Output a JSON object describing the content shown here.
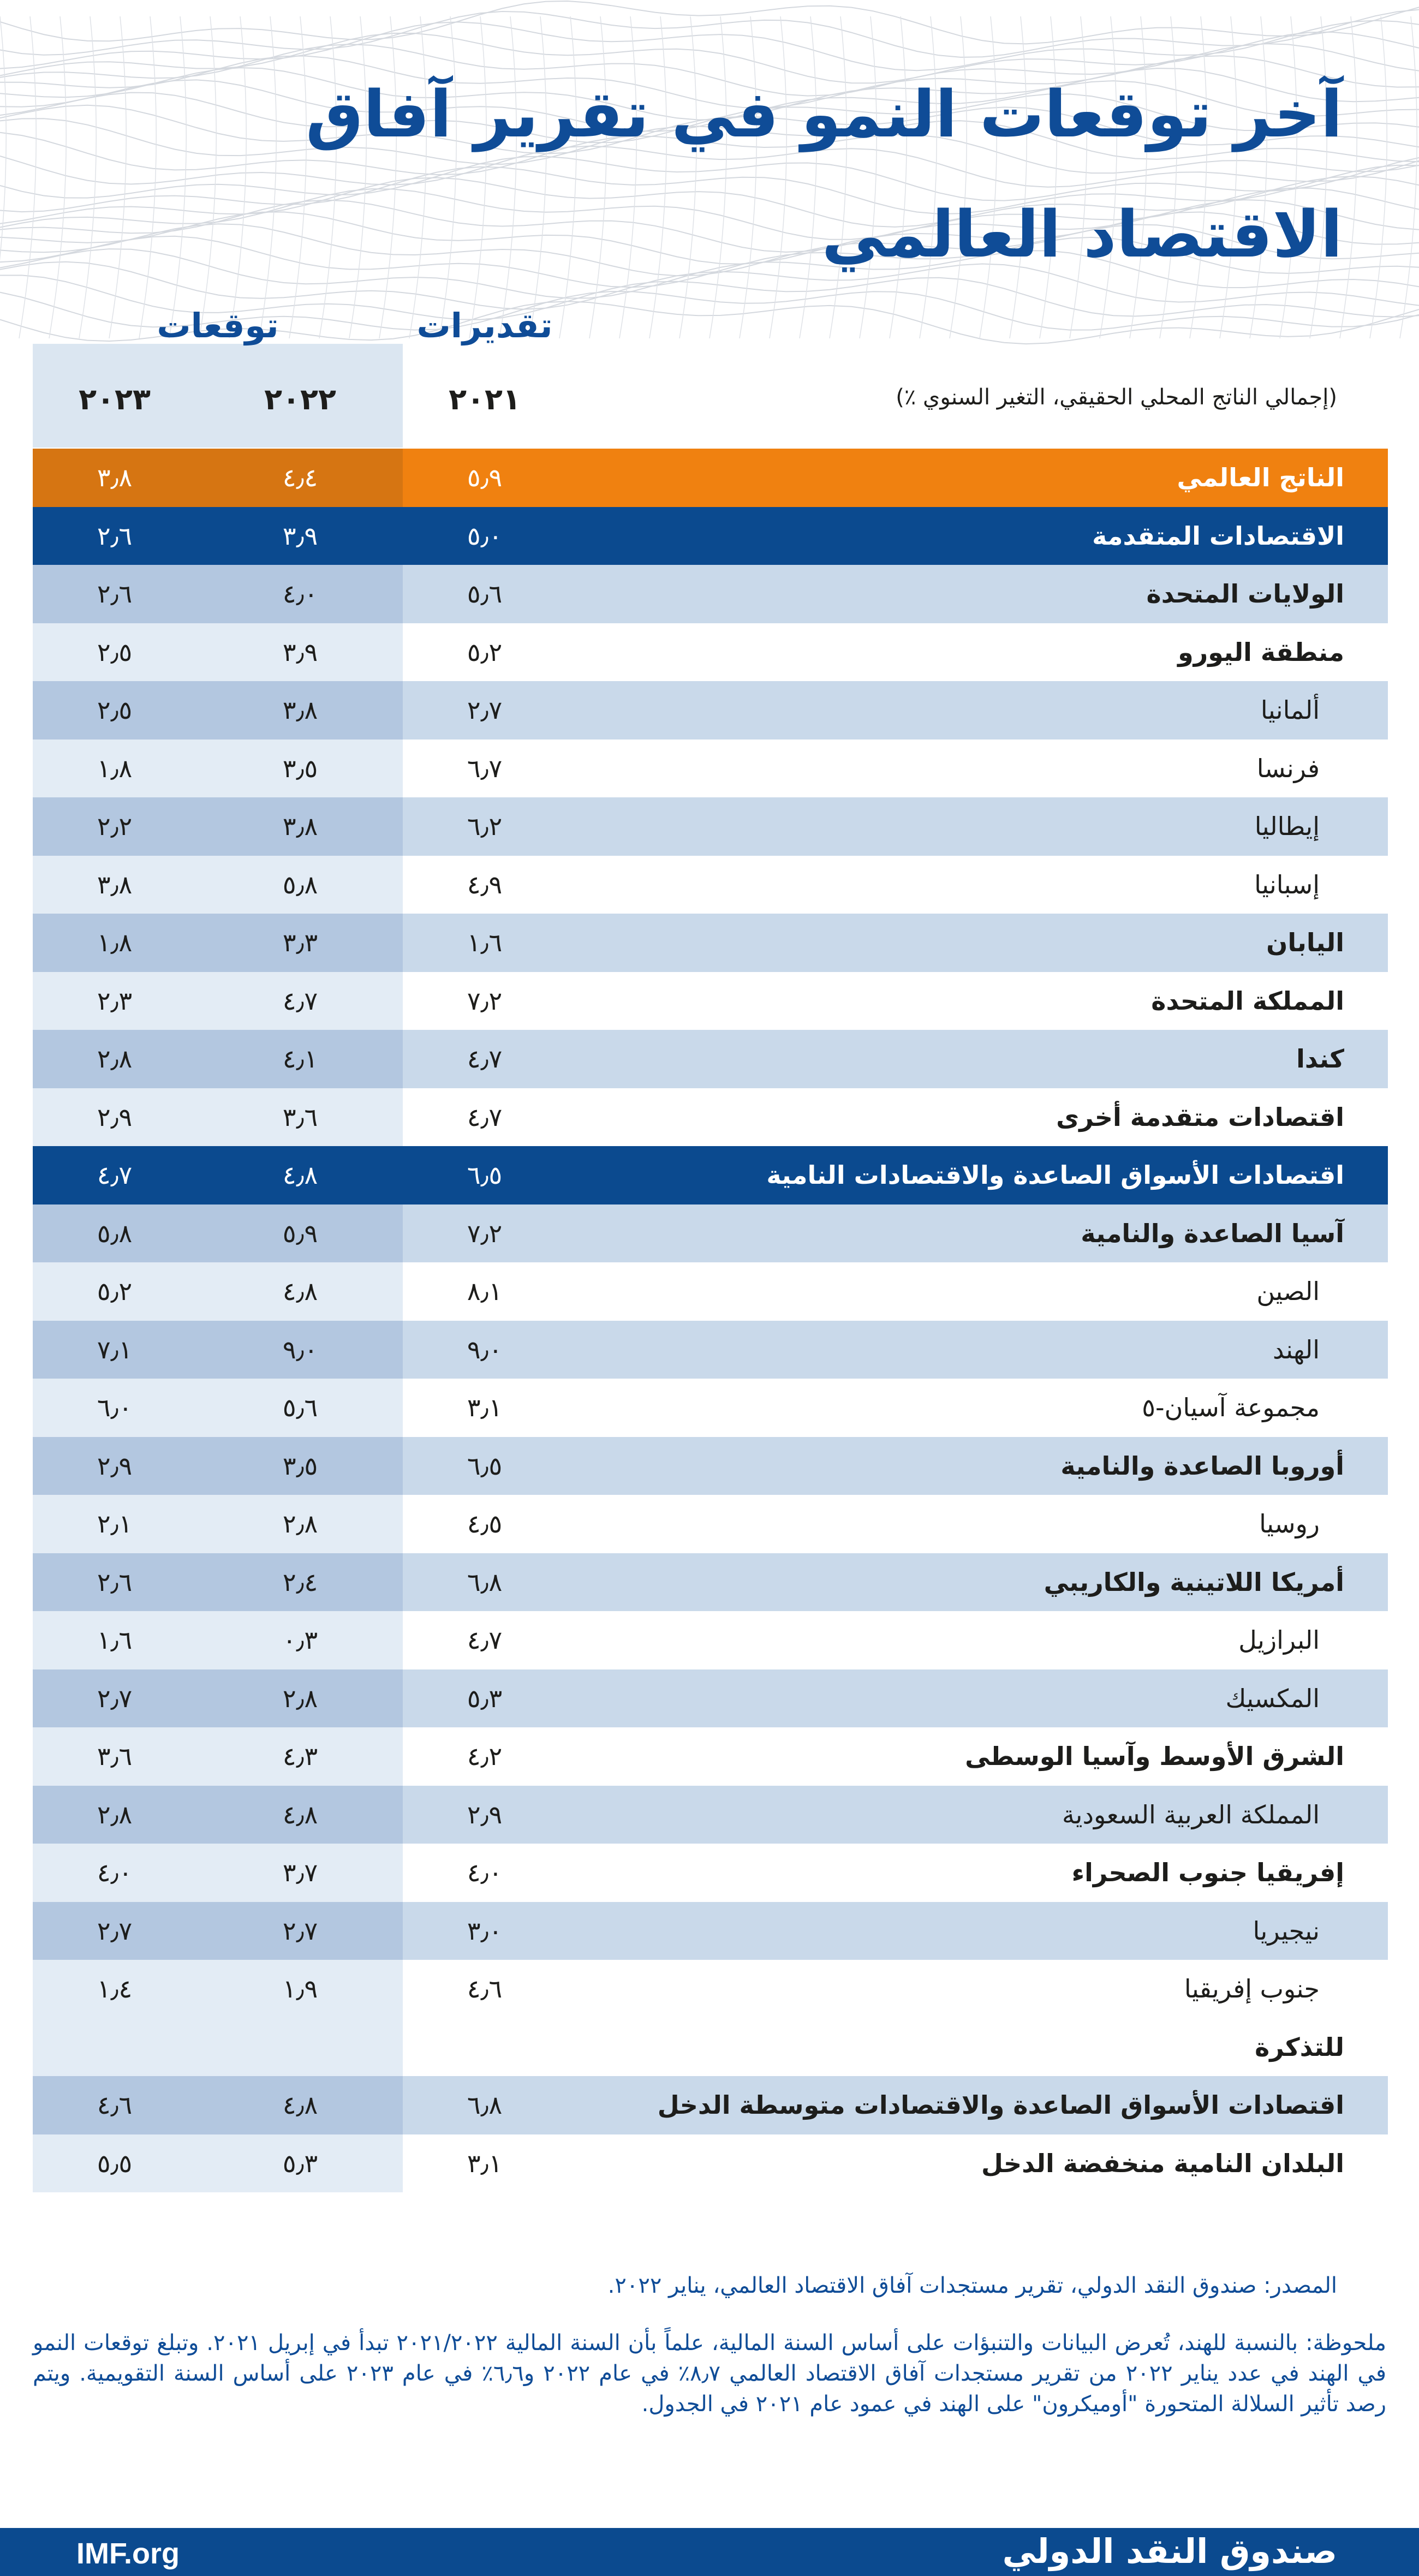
{
  "title": {
    "line1": "آخر توقعات النمو في تقرير آفاق",
    "line2": "الاقتصاد العالمي"
  },
  "header": {
    "estimates_label": "تقديرات",
    "projections_label": "توقعات",
    "years": [
      "٢٠٢١",
      "٢٠٢٢",
      "٢٠٢٣"
    ],
    "subtitle": "(إجمالي الناتج المحلي الحقيقي، التغير السنوي ٪)"
  },
  "colors": {
    "title": "#0f4c97",
    "world_row": "#f08110",
    "group_row": "#0b4a8f",
    "shaded_row": "#c9d9ea",
    "forecast_column": "#b3c7e0"
  },
  "rows": [
    {
      "label": "الناتج العالمي",
      "kind": "world",
      "v2021": "٥٫٩",
      "v2022": "٤٫٤",
      "v2023": "٣٫٨"
    },
    {
      "label": "الاقتصادات المتقدمة",
      "kind": "group",
      "v2021": "٥٫٠",
      "v2022": "٣٫٩",
      "v2023": "٢٫٦"
    },
    {
      "label": "الولايات المتحدة",
      "kind": "bold",
      "shaded": true,
      "v2021": "٥٫٦",
      "v2022": "٤٫٠",
      "v2023": "٢٫٦"
    },
    {
      "label": "منطقة اليورو",
      "kind": "bold",
      "shaded": false,
      "v2021": "٥٫٢",
      "v2022": "٣٫٩",
      "v2023": "٢٫٥"
    },
    {
      "label": "ألمانيا",
      "kind": "country",
      "shaded": true,
      "v2021": "٢٫٧",
      "v2022": "٣٫٨",
      "v2023": "٢٫٥"
    },
    {
      "label": "فرنسا",
      "kind": "country",
      "shaded": false,
      "v2021": "٦٫٧",
      "v2022": "٣٫٥",
      "v2023": "١٫٨"
    },
    {
      "label": "إيطاليا",
      "kind": "country",
      "shaded": true,
      "v2021": "٦٫٢",
      "v2022": "٣٫٨",
      "v2023": "٢٫٢"
    },
    {
      "label": "إسبانيا",
      "kind": "country",
      "shaded": false,
      "v2021": "٤٫٩",
      "v2022": "٥٫٨",
      "v2023": "٣٫٨"
    },
    {
      "label": "اليابان",
      "kind": "bold",
      "shaded": true,
      "v2021": "١٫٦",
      "v2022": "٣٫٣",
      "v2023": "١٫٨"
    },
    {
      "label": "المملكة المتحدة",
      "kind": "bold",
      "shaded": false,
      "v2021": "٧٫٢",
      "v2022": "٤٫٧",
      "v2023": "٢٫٣"
    },
    {
      "label": "كندا",
      "kind": "bold",
      "shaded": true,
      "v2021": "٤٫٧",
      "v2022": "٤٫١",
      "v2023": "٢٫٨"
    },
    {
      "label": "اقتصادات متقدمة أخرى",
      "kind": "bold",
      "shaded": false,
      "v2021": "٤٫٧",
      "v2022": "٣٫٦",
      "v2023": "٢٫٩"
    },
    {
      "label": "اقتصادات الأسواق الصاعدة والاقتصادات النامية",
      "kind": "group",
      "v2021": "٦٫٥",
      "v2022": "٤٫٨",
      "v2023": "٤٫٧"
    },
    {
      "label": "آسيا الصاعدة والنامية",
      "kind": "bold",
      "shaded": true,
      "v2021": "٧٫٢",
      "v2022": "٥٫٩",
      "v2023": "٥٫٨"
    },
    {
      "label": "الصين",
      "kind": "country",
      "shaded": false,
      "v2021": "٨٫١",
      "v2022": "٤٫٨",
      "v2023": "٥٫٢"
    },
    {
      "label": "الهند",
      "kind": "country",
      "shaded": true,
      "v2021": "٩٫٠",
      "v2022": "٩٫٠",
      "v2023": "٧٫١"
    },
    {
      "label": "مجموعة آسيان-٥",
      "kind": "country",
      "shaded": false,
      "v2021": "٣٫١",
      "v2022": "٥٫٦",
      "v2023": "٦٫٠"
    },
    {
      "label": "أوروبا الصاعدة والنامية",
      "kind": "bold",
      "shaded": true,
      "v2021": "٦٫٥",
      "v2022": "٣٫٥",
      "v2023": "٢٫٩"
    },
    {
      "label": "روسيا",
      "kind": "country",
      "shaded": false,
      "v2021": "٤٫٥",
      "v2022": "٢٫٨",
      "v2023": "٢٫١"
    },
    {
      "label": "أمريكا اللاتينية والكاريبي",
      "kind": "bold",
      "shaded": true,
      "v2021": "٦٫٨",
      "v2022": "٢٫٤",
      "v2023": "٢٫٦"
    },
    {
      "label": "البرازيل",
      "kind": "country",
      "shaded": false,
      "v2021": "٤٫٧",
      "v2022": "٠٫٣",
      "v2023": "١٫٦"
    },
    {
      "label": "المكسيك",
      "kind": "country",
      "shaded": true,
      "v2021": "٥٫٣",
      "v2022": "٢٫٨",
      "v2023": "٢٫٧"
    },
    {
      "label": "الشرق الأوسط وآسيا الوسطى",
      "kind": "bold",
      "shaded": false,
      "v2021": "٤٫٢",
      "v2022": "٤٫٣",
      "v2023": "٣٫٦"
    },
    {
      "label": "المملكة العربية السعودية",
      "kind": "country",
      "shaded": true,
      "v2021": "٢٫٩",
      "v2022": "٤٫٨",
      "v2023": "٢٫٨"
    },
    {
      "label": "إفريقيا جنوب الصحراء",
      "kind": "bold",
      "shaded": false,
      "v2021": "٤٫٠",
      "v2022": "٣٫٧",
      "v2023": "٤٫٠"
    },
    {
      "label": "نيجيريا",
      "kind": "country",
      "shaded": true,
      "v2021": "٣٫٠",
      "v2022": "٢٫٧",
      "v2023": "٢٫٧"
    },
    {
      "label": "جنوب إفريقيا",
      "kind": "country",
      "shaded": false,
      "v2021": "٤٫٦",
      "v2022": "١٫٩",
      "v2023": "١٫٤"
    },
    {
      "label": "للتذكرة",
      "kind": "bold",
      "shaded": false,
      "v2021": "",
      "v2022": "",
      "v2023": ""
    },
    {
      "label": "اقتصادات الأسواق الصاعدة والاقتصادات متوسطة الدخل",
      "kind": "bold",
      "shaded": true,
      "v2021": "٦٫٨",
      "v2022": "٤٫٨",
      "v2023": "٤٫٦"
    },
    {
      "label": "البلدان النامية منخفضة الدخل",
      "kind": "bold",
      "shaded": false,
      "v2021": "٣٫١",
      "v2022": "٥٫٣",
      "v2023": "٥٫٥"
    }
  ],
  "source": "المصدر: صندوق النقد الدولي، تقرير مستجدات آفاق الاقتصاد العالمي، يناير ٢٠٢٢.",
  "note": "ملحوظة: بالنسبة للهند، تُعرض البيانات والتنبؤات على أساس السنة المالية، علماً بأن السنة المالية ٢٠٢١/٢٠٢٢ تبدأ في إبريل ٢٠٢١. وتبلغ توقعات النمو في الهند في عدد يناير ٢٠٢٢ من تقرير مستجدات آفاق الاقتصاد العالمي ٨٫٧٪ في عام ٢٠٢٢ و٦٫٦٪ في عام ٢٠٢٣ على أساس السنة التقويمية. ويتم رصد تأثير السلالة المتحورة \"أوميكرون\" على الهند في عمود عام ٢٠٢١ في الجدول.",
  "footer": {
    "org_name": "صندوق النقد الدولي",
    "url": "IMF.org"
  }
}
